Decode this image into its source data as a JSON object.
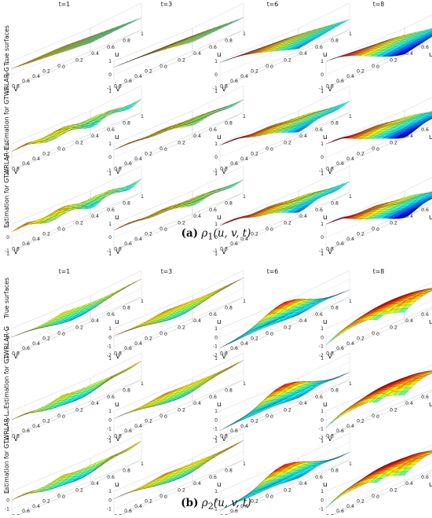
{
  "panels": [
    {
      "caption_label": "(a)",
      "caption_symbol": "ρ",
      "caption_sub": "1",
      "caption_args": "(u, v, t)",
      "columns": [
        "t=1",
        "t=3",
        "t=6",
        "t=8"
      ],
      "rows": [
        "True surfaces",
        "Estimation for GTWRLAR-G",
        "Estimation for GTWRLAR-L"
      ],
      "z_ticks": [
        "1",
        "0",
        "-1"
      ],
      "z_range": [
        -1,
        1
      ],
      "u_ticks": [
        "0",
        "0.2",
        "0.4",
        "0.6",
        "0.8",
        "1"
      ],
      "v_ticks": [
        "1",
        "0.8",
        "0.6",
        "0.4",
        "0.2",
        "0"
      ],
      "u_label": "u",
      "v_label": "v"
    },
    {
      "caption_label": "(b)",
      "caption_symbol": "ρ",
      "caption_sub": "2",
      "caption_args": "(u, v, t)",
      "columns": [
        "t=1",
        "t=3",
        "t=6",
        "t=8"
      ],
      "rows": [
        "True surfaces",
        "Estimation for GTWRLAR-G",
        "Estimation for GTWRLAR-L"
      ],
      "z_ticks": [
        "1",
        "0",
        "-1",
        "-2"
      ],
      "z_range": [
        -2,
        1
      ],
      "u_ticks": [
        "0",
        "0.2",
        "0.4",
        "0.6",
        "0.8",
        "1"
      ],
      "v_ticks": [
        "1",
        "0.8",
        "0.6",
        "0.4",
        "0.2",
        "0"
      ],
      "u_label": "u",
      "v_label": "v"
    }
  ],
  "colormap": "jet"
}
